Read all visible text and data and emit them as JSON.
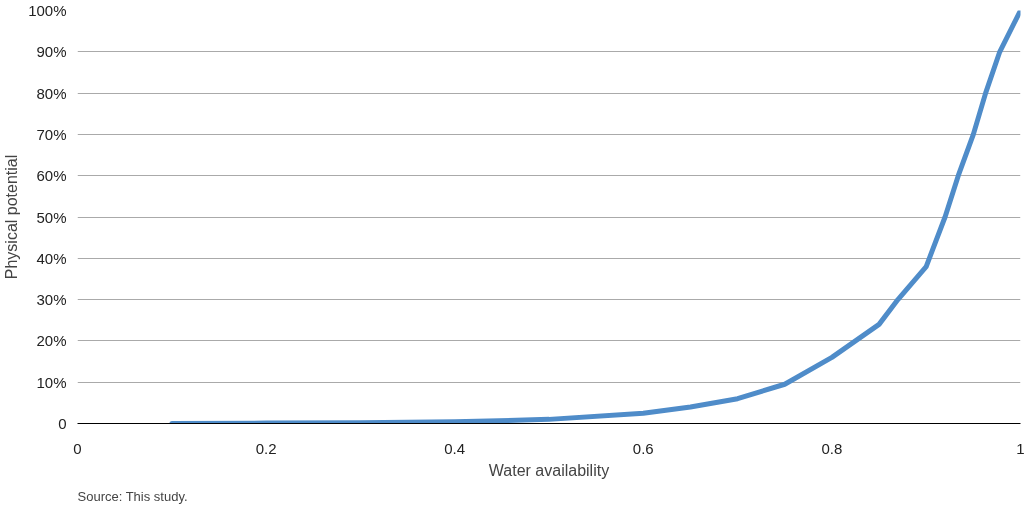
{
  "chart_data": {
    "type": "line",
    "xlabel": "Water availability",
    "ylabel": "Physical potential",
    "annotations": [
      "Source: This study."
    ],
    "x": [
      0.1,
      0.2,
      0.3,
      0.4,
      0.5,
      0.6,
      0.65,
      0.7,
      0.75,
      0.8,
      0.85,
      0.87,
      0.9,
      0.92,
      0.934,
      0.95,
      0.963,
      0.978,
      1.0
    ],
    "series": [
      {
        "color": "#4f8cc9",
        "values": [
          0,
          0.1,
          0.2,
          0.4,
          1,
          2.5,
          4,
          6,
          9.5,
          16,
          24,
          30,
          38,
          50,
          60,
          70,
          80,
          90,
          100
        ]
      }
    ],
    "xlim": [
      0,
      1
    ],
    "xticks": [
      0,
      0.2,
      0.4,
      0.6,
      0.8,
      1
    ],
    "ylim": [
      0,
      100
    ],
    "yticks": [
      0,
      {
        "value": 10,
        "label": "10%"
      },
      {
        "value": 20,
        "label": "20%"
      },
      {
        "value": 30,
        "label": "30%"
      },
      {
        "value": 40,
        "label": "40%"
      },
      {
        "value": 50,
        "label": "50%"
      },
      {
        "value": 60,
        "label": "60%"
      },
      {
        "value": 70,
        "label": "70%"
      },
      {
        "value": 80,
        "label": "80%"
      },
      {
        "value": 90,
        "label": "90%"
      },
      {
        "value": 100,
        "label": "100%"
      }
    ],
    "grid": "y",
    "marker": "none",
    "line_style": "solid"
  }
}
